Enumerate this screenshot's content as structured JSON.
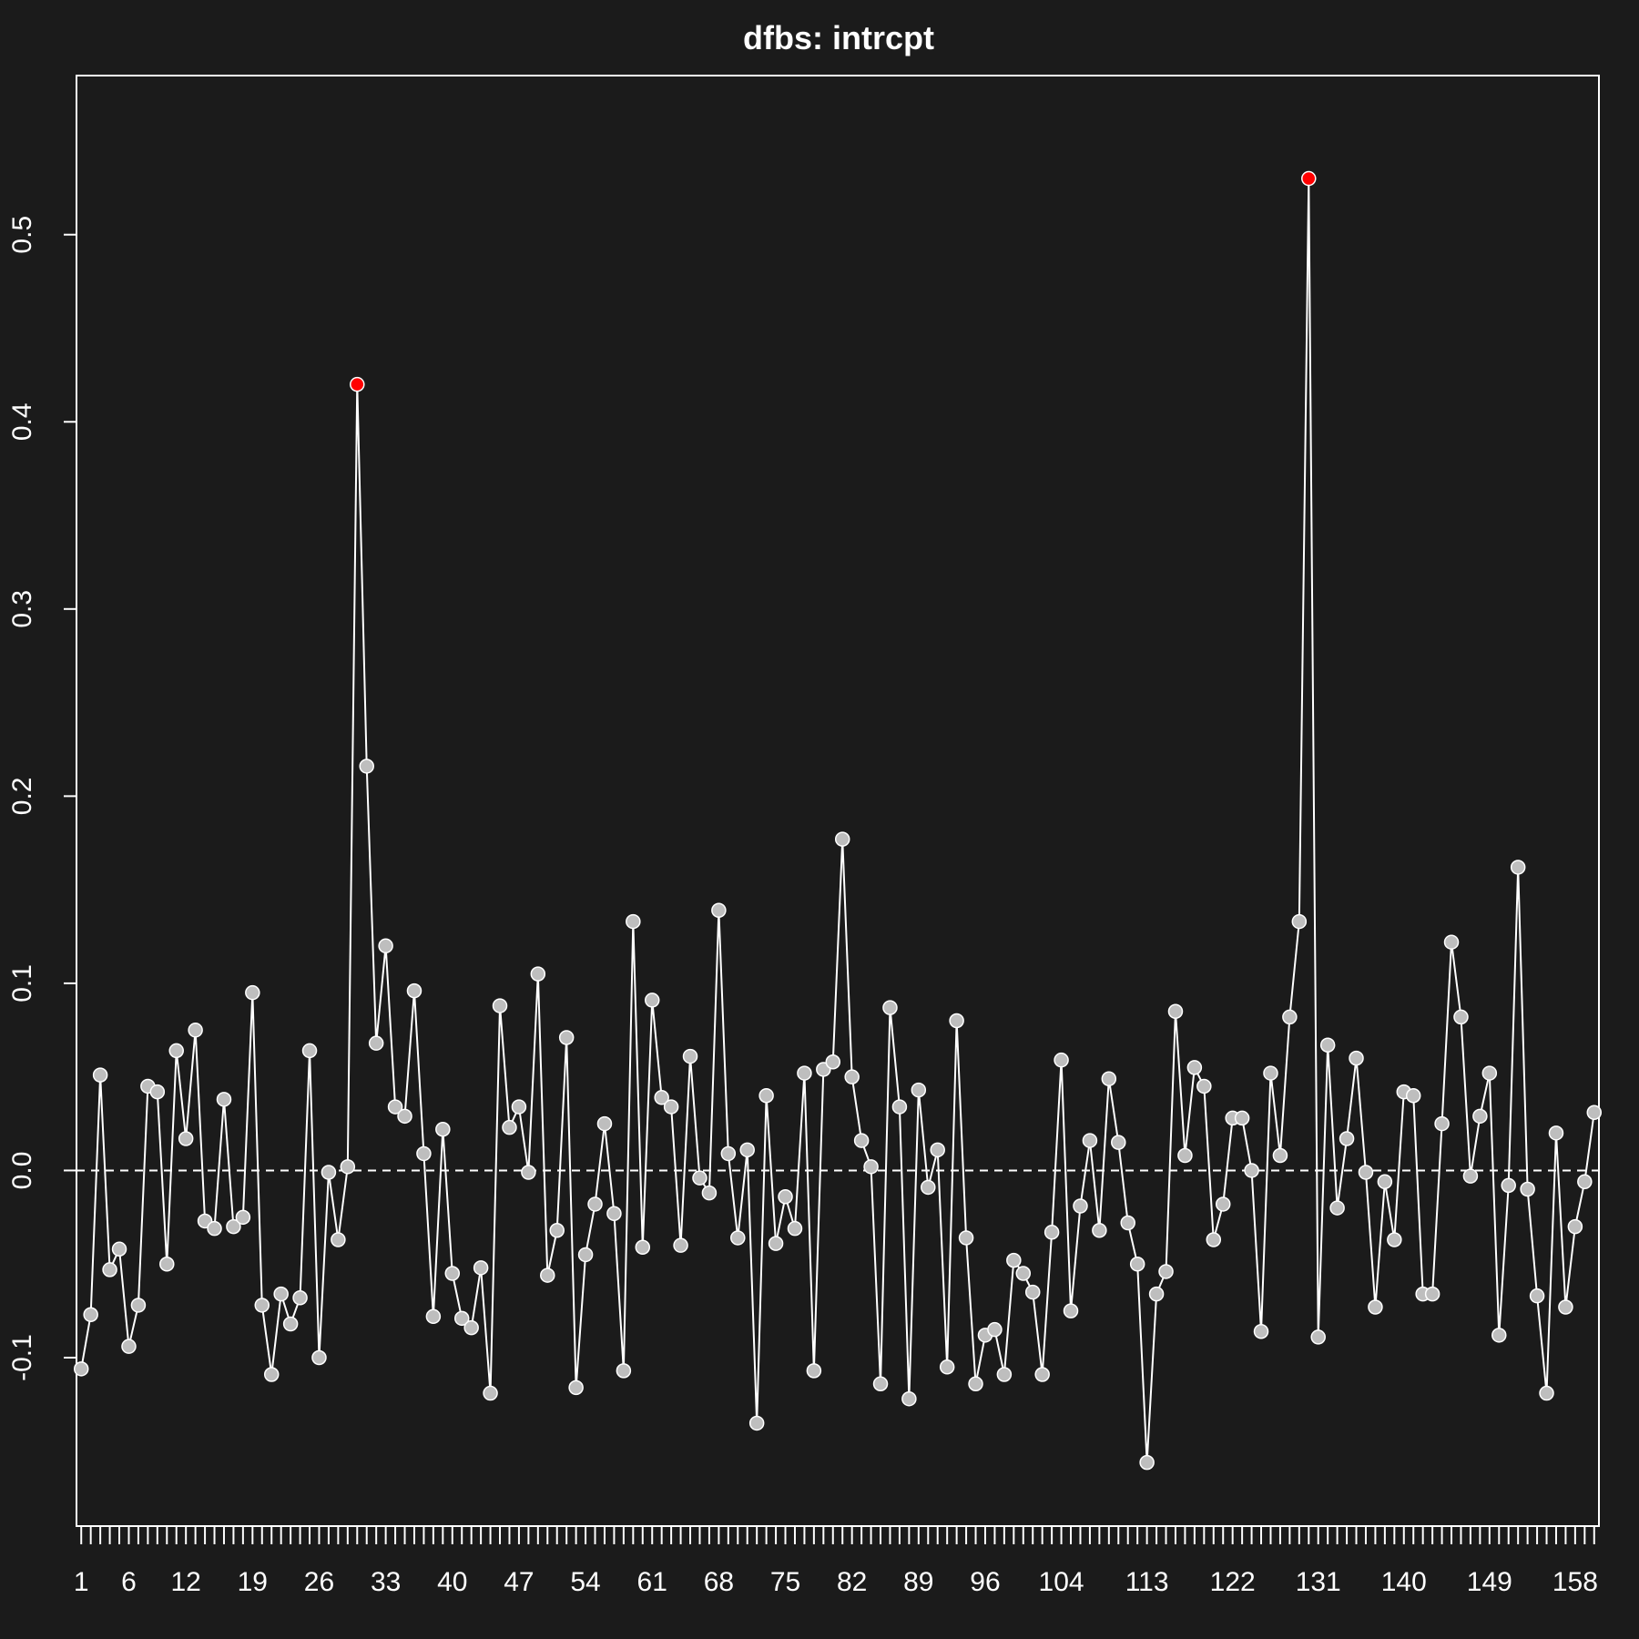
{
  "chart_data": {
    "type": "line",
    "title": "dfbs:  intrcpt",
    "xlabel": "",
    "ylabel": "",
    "x_tick_labels": [
      "1",
      "6",
      "12",
      "19",
      "26",
      "33",
      "40",
      "47",
      "54",
      "61",
      "68",
      "75",
      "82",
      "89",
      "96",
      "104",
      "113",
      "122",
      "131",
      "140",
      "149",
      "158"
    ],
    "y_tick_labels": [
      "-0.1",
      "0.0",
      "0.1",
      "0.2",
      "0.3",
      "0.4",
      "0.5"
    ],
    "xlim": [
      0.5,
      160.5
    ],
    "ylim": [
      -0.19,
      0.585
    ],
    "reference_line": 0,
    "highlighted_points": [
      30,
      130
    ],
    "colors": {
      "background": "#1b1b1b",
      "line": "#ffffff",
      "point_fill": "#bebebe",
      "highlight": "#ff0000"
    },
    "series": [
      {
        "x": [
          1,
          2,
          3,
          4,
          5,
          6,
          7,
          8,
          9,
          10,
          11,
          12,
          13,
          14,
          15,
          16,
          17,
          18,
          19,
          20,
          21,
          22,
          23,
          24,
          25,
          26,
          27,
          28,
          29,
          30,
          31,
          32,
          33,
          34,
          35,
          36,
          37,
          38,
          39,
          40,
          41,
          42,
          43,
          44,
          45,
          46,
          47,
          48,
          49,
          50,
          51,
          52,
          53,
          54,
          55,
          56,
          57,
          58,
          59,
          60,
          61,
          62,
          63,
          64,
          65,
          66,
          67,
          68,
          69,
          70,
          71,
          72,
          73,
          74,
          75,
          76,
          77,
          78,
          79,
          80,
          81,
          82,
          83,
          84,
          85,
          86,
          87,
          88,
          89,
          90,
          91,
          92,
          93,
          94,
          95,
          96,
          97,
          98,
          99,
          100,
          101,
          102,
          103,
          104,
          105,
          106,
          107,
          108,
          109,
          110,
          111,
          112,
          113,
          114,
          115,
          116,
          117,
          118,
          119,
          120,
          121,
          122,
          123,
          124,
          125,
          126,
          127,
          128,
          129,
          130,
          131,
          132,
          133,
          134,
          135,
          136,
          137,
          138,
          139,
          140,
          141,
          142,
          143,
          144,
          145,
          146,
          147,
          148,
          149,
          150,
          151,
          152,
          153,
          154,
          155,
          156,
          157,
          158,
          159,
          160
        ],
        "y": [
          -0.106,
          -0.077,
          0.051,
          -0.053,
          -0.042,
          -0.094,
          -0.072,
          0.045,
          0.042,
          -0.05,
          0.064,
          0.017,
          0.075,
          -0.027,
          -0.031,
          0.038,
          -0.03,
          -0.025,
          0.095,
          -0.072,
          -0.109,
          -0.066,
          -0.082,
          -0.068,
          0.064,
          -0.1,
          -0.001,
          -0.037,
          0.002,
          0.42,
          0.216,
          0.068,
          0.12,
          0.034,
          0.029,
          0.096,
          0.009,
          -0.078,
          0.022,
          -0.055,
          -0.079,
          -0.084,
          -0.052,
          -0.119,
          0.088,
          0.023,
          0.034,
          -0.001,
          0.105,
          -0.056,
          -0.032,
          0.071,
          -0.116,
          -0.045,
          -0.018,
          0.025,
          -0.023,
          -0.107,
          0.133,
          -0.041,
          0.091,
          0.039,
          0.034,
          -0.04,
          0.061,
          -0.004,
          -0.012,
          0.139,
          0.009,
          -0.036,
          0.011,
          -0.135,
          0.04,
          -0.039,
          -0.014,
          -0.031,
          0.052,
          -0.107,
          0.054,
          0.058,
          0.177,
          0.05,
          0.016,
          0.002,
          -0.114,
          0.087,
          0.034,
          -0.122,
          0.043,
          -0.009,
          0.011,
          -0.105,
          0.08,
          -0.036,
          -0.114,
          -0.088,
          -0.085,
          -0.109,
          -0.048,
          -0.055,
          -0.065,
          -0.109,
          -0.033,
          0.059,
          -0.075,
          -0.019,
          0.016,
          -0.032,
          0.049,
          0.015,
          -0.028,
          -0.05,
          -0.156,
          -0.066,
          -0.054,
          0.085,
          0.008,
          0.055,
          0.045,
          -0.037,
          -0.018,
          0.028,
          0.028,
          0.0,
          -0.086,
          0.052,
          0.008,
          0.082,
          0.133,
          0.53,
          -0.089,
          0.067,
          -0.02,
          0.017,
          0.06,
          -0.001,
          -0.073,
          -0.006,
          -0.037,
          0.042,
          0.04,
          -0.066,
          -0.066,
          0.025,
          0.122,
          0.082,
          -0.003,
          0.029,
          0.052,
          -0.088,
          -0.008,
          0.162,
          -0.01,
          -0.067,
          -0.119,
          0.02,
          -0.073,
          -0.03,
          -0.006,
          0.031
        ]
      }
    ]
  }
}
